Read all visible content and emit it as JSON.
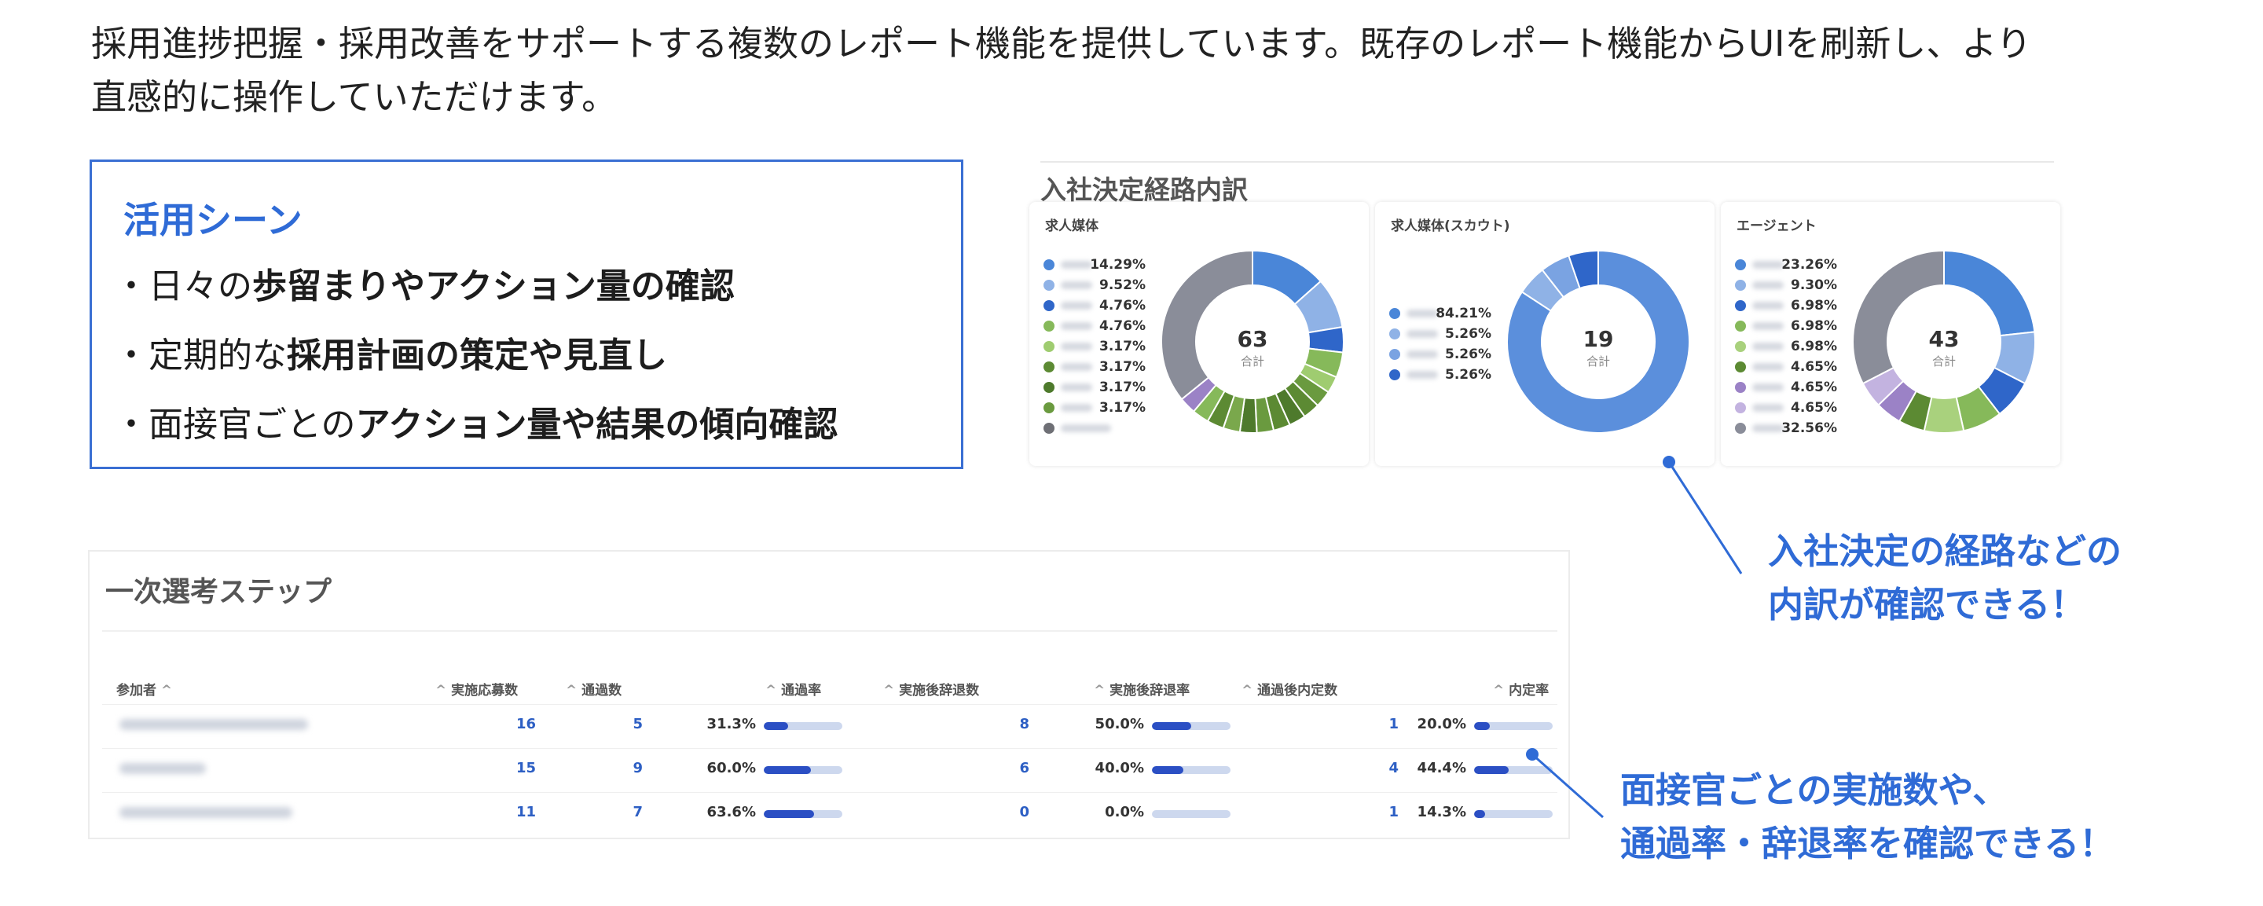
{
  "intro": {
    "line1": "採用進捗把握・採用改善をサポートする複数のレポート機能を提供しています。既存のレポート機能からUIを刷新し、より",
    "line2": "直感的に操作していただけます。"
  },
  "scenes": {
    "title": "活用シーン",
    "items": [
      {
        "prefix": "・日々の",
        "bold": "歩留まりやアクション量の確認"
      },
      {
        "prefix": "・定期的な",
        "bold": "採用計画の策定や見直し"
      },
      {
        "prefix": "・面接官ごとの",
        "bold": "アクション量や結果の傾向確認"
      }
    ]
  },
  "donut_panel": {
    "title": "入社決定経路内訳",
    "cards": [
      {
        "title": "求人媒体",
        "total": "63",
        "total_label": "合計",
        "legend": [
          "14.29%",
          "9.52%",
          "4.76%",
          "4.76%",
          "3.17%",
          "3.17%",
          "3.17%",
          "3.17%",
          ""
        ],
        "values": [
          14.29,
          9.52,
          4.76,
          4.76,
          3.17,
          3.17,
          3.17,
          3.17,
          3.17,
          3.17,
          3.17,
          3.17,
          3.17,
          3.17,
          3.17,
          38.11
        ],
        "colors": [
          "#4a86d8",
          "#8fb2e6",
          "#2f66c9",
          "#86b95a",
          "#9fcc70",
          "#6a9a3f",
          "#5c8a33",
          "#4e7a2c",
          "#5c8a33",
          "#6a9a3f",
          "#4e7a2c",
          "#7aa84c",
          "#5c8a33",
          "#86b95a",
          "#9b82c6",
          "#8a8d99"
        ],
        "legend_colors": [
          "#4a86d8",
          "#8fb2e6",
          "#2f66c9",
          "#86b95a",
          "#9fcc70",
          "#5c8a33",
          "#4e7a2c",
          "#6a9a3f",
          "#6e6f75"
        ]
      },
      {
        "title": "求人媒体(スカウト)",
        "total": "19",
        "total_label": "合計",
        "legend": [
          "84.21%",
          "5.26%",
          "5.26%",
          "5.26%"
        ],
        "values": [
          84.21,
          5.26,
          5.26,
          5.26
        ],
        "colors": [
          "#5b8fdc",
          "#8fb2e6",
          "#7aa3e2",
          "#2f66c9"
        ],
        "legend_colors": [
          "#4a86d8",
          "#8fb2e6",
          "#7aa3e2",
          "#2f66c9"
        ]
      },
      {
        "title": "エージェント",
        "total": "43",
        "total_label": "合計",
        "legend": [
          "23.26%",
          "9.30%",
          "6.98%",
          "6.98%",
          "6.98%",
          "4.65%",
          "4.65%",
          "4.65%",
          "32.56%"
        ],
        "values": [
          23.26,
          9.3,
          6.98,
          6.98,
          6.98,
          4.65,
          4.65,
          4.65,
          32.56
        ],
        "colors": [
          "#4a86d8",
          "#8fb2e6",
          "#2f66c9",
          "#86b95a",
          "#a9d17d",
          "#5c8a33",
          "#9b82c6",
          "#c3b3e0",
          "#8a8d99"
        ],
        "legend_colors": [
          "#4a86d8",
          "#8fb2e6",
          "#2f66c9",
          "#86b95a",
          "#a9d17d",
          "#5c8a33",
          "#9b82c6",
          "#c3b3e0",
          "#8a8d99"
        ]
      }
    ]
  },
  "callout_donut": {
    "line1": "入社決定の経路などの",
    "line2": "内訳が確認できる！"
  },
  "callout_table": {
    "line1": "面接官ごとの実施数や、",
    "line2": "通過率・辞退率を確認できる！"
  },
  "table": {
    "title": "一次選考ステップ",
    "headers": {
      "participant": "参加者",
      "conducted": "実施応募数",
      "passed": "通過数",
      "pass_rate": "通過率",
      "declined": "実施後辞退数",
      "decline_rate": "実施後辞退率",
      "offers": "通過後内定数",
      "offer_rate": "内定率"
    },
    "sort_glyph": "^",
    "rows": [
      {
        "conducted": "16",
        "passed": "5",
        "pass_rate": "31.3%",
        "pass_rate_value": 0.313,
        "declined": "8",
        "decline_rate": "50.0%",
        "decline_rate_value": 0.5,
        "offers": "1",
        "offer_rate": "20.0%",
        "offer_rate_value": 0.2
      },
      {
        "conducted": "15",
        "passed": "9",
        "pass_rate": "60.0%",
        "pass_rate_value": 0.6,
        "declined": "6",
        "decline_rate": "40.0%",
        "decline_rate_value": 0.4,
        "offers": "4",
        "offer_rate": "44.4%",
        "offer_rate_value": 0.444
      },
      {
        "conducted": "11",
        "passed": "7",
        "pass_rate": "63.6%",
        "pass_rate_value": 0.636,
        "declined": "0",
        "decline_rate": "0.0%",
        "decline_rate_value": 0.0,
        "offers": "1",
        "offer_rate": "14.3%",
        "offer_rate_value": 0.143
      }
    ]
  }
}
